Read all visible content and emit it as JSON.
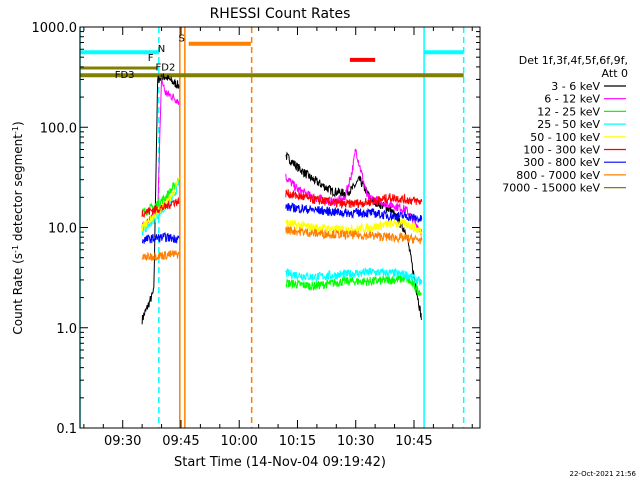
{
  "chart_data": {
    "type": "line",
    "title": "RHESSI Count Rates",
    "xlabel": "Start Time (14-Nov-04 09:19:42)",
    "ylabel_main": "Count Rate (s",
    "ylabel_sup1": "-1",
    "ylabel_mid": " detector segment",
    "ylabel_sup2": "-1",
    "ylabel_end": ")",
    "yscale": "log",
    "ylim": [
      0.1,
      1000
    ],
    "xlim_min": [
      20,
      123
    ],
    "x_tick_minutes": [
      31,
      46,
      61,
      76,
      91,
      106
    ],
    "x_tick_labels": [
      "09:30",
      "09:45",
      "10:00",
      "10:15",
      "10:30",
      "10:45"
    ],
    "y_tick_values": [
      0.1,
      1,
      10,
      100,
      1000
    ],
    "y_tick_labels": [
      "0.1",
      "1.0",
      "10.0",
      "100.0",
      "1000.0"
    ],
    "legend": {
      "placement": "right",
      "header1": "Det 1f,3f,4f,5f,6f,9f,",
      "header2": "Att 0"
    },
    "series": [
      {
        "name": "3 - 6 keV",
        "color": "#000000",
        "segments": [
          {
            "t": [
              36,
              39,
              40,
              42,
              44,
              45.5
            ],
            "y": [
              1.2,
              2.3,
              300,
              320,
              280,
              260
            ]
          },
          {
            "t": [
              73,
              76,
              80,
              85,
              88,
              90,
              92,
              95,
              100,
              104,
              108
            ],
            "y": [
              52,
              40,
              30,
              23,
              22,
              24,
              30,
              19,
              15,
              9,
              1.2
            ]
          }
        ]
      },
      {
        "name": "6 - 12 keV",
        "color": "#ff00ff",
        "segments": [
          {
            "t": [
              36,
              39,
              40,
              41,
              42,
              44,
              45.5
            ],
            "y": [
              10,
              13,
              15,
              300,
              220,
              200,
              180
            ]
          },
          {
            "t": [
              73,
              76,
              80,
              85,
              88,
              90,
              91,
              92,
              94,
              100,
              104,
              108
            ],
            "y": [
              32,
              24,
              20,
              18,
              19,
              35,
              60,
              42,
              20,
              17,
              15,
              9
            ]
          }
        ]
      },
      {
        "name": "12 - 25 keV",
        "color": "#00ff00",
        "segments": [
          {
            "t": [
              36,
              39,
              42,
              44,
              45.5
            ],
            "y": [
              14,
              16,
              20,
              25,
              30
            ]
          },
          {
            "t": [
              73,
              80,
              88,
              95,
              100,
              104,
              108
            ],
            "y": [
              2.8,
              2.6,
              2.9,
              2.9,
              3.0,
              3.1,
              2.2
            ]
          }
        ]
      },
      {
        "name": "25 - 50 keV",
        "color": "#00ffff",
        "segments": [
          {
            "t": [
              36,
              39,
              42,
              44,
              45.5
            ],
            "y": [
              9,
              12,
              16,
              20,
              28
            ]
          },
          {
            "t": [
              73,
              80,
              88,
              95,
              100,
              104,
              108
            ],
            "y": [
              3.5,
              3.2,
              3.4,
              3.6,
              3.5,
              3.4,
              2.8
            ]
          }
        ]
      },
      {
        "name": "50 - 100 keV",
        "color": "#ffff00",
        "segments": [
          {
            "t": [
              36,
              39,
              42,
              44,
              45.5
            ],
            "y": [
              10,
              13,
              17,
              22,
              32
            ]
          },
          {
            "t": [
              73,
              80,
              88,
              95,
              100,
              104,
              108
            ],
            "y": [
              11,
              10,
              9.5,
              10,
              11,
              11,
              9
            ]
          }
        ]
      },
      {
        "name": "100 - 300 keV",
        "color": "#ff0000",
        "segments": [
          {
            "t": [
              36,
              39,
              42,
              44,
              45.5
            ],
            "y": [
              14,
              15,
              16,
              18,
              18
            ]
          },
          {
            "t": [
              73,
              80,
              88,
              95,
              100,
              104,
              108
            ],
            "y": [
              22,
              19,
              17,
              18,
              20,
              19,
              18
            ]
          }
        ]
      },
      {
        "name": "300 - 800 keV",
        "color": "#0000ff",
        "segments": [
          {
            "t": [
              36,
              39,
              42,
              44,
              45.5
            ],
            "y": [
              7.5,
              7.8,
              8.0,
              7.8,
              7.8
            ]
          },
          {
            "t": [
              73,
              80,
              88,
              95,
              100,
              104,
              108
            ],
            "y": [
              16,
              15,
              14,
              14,
              13,
              13,
              12
            ]
          }
        ]
      },
      {
        "name": "800 - 7000 keV",
        "color": "#ff8000",
        "segments": [
          {
            "t": [
              36,
              39,
              42,
              44,
              45.5
            ],
            "y": [
              5,
              5.2,
              5.3,
              5.4,
              5.4
            ]
          },
          {
            "t": [
              73,
              80,
              88,
              95,
              100,
              104,
              108
            ],
            "y": [
              9.5,
              8.8,
              8.5,
              8.3,
              8.0,
              7.8,
              7.5
            ]
          }
        ]
      },
      {
        "name": "7000 - 15000 keV",
        "color": "#808000",
        "segments": []
      }
    ],
    "annotations": {
      "vlines": [
        {
          "t": 20,
          "color": "#00ffff",
          "dash": false
        },
        {
          "t": 40.3,
          "color": "#00ffff",
          "dash": true
        },
        {
          "t": 45.7,
          "color": "#ff8000",
          "dash": false
        },
        {
          "t": 47.0,
          "color": "#ff8000",
          "dash": false
        },
        {
          "t": 64.2,
          "color": "#ff8000",
          "dash": true
        },
        {
          "t": 108.6,
          "color": "#00ffff",
          "dash": false
        },
        {
          "t": 118.8,
          "color": "#00ffff",
          "dash": true
        }
      ],
      "hbars": [
        {
          "t0": 20,
          "t1": 40.3,
          "y": 560,
          "color": "#00ffff",
          "width": 4
        },
        {
          "t0": 108.6,
          "t1": 118.8,
          "y": 560,
          "color": "#00ffff",
          "width": 4
        },
        {
          "t0": 48,
          "t1": 64,
          "y": 680,
          "color": "#ff8000",
          "width": 4
        },
        {
          "t0": 20,
          "t1": 118.8,
          "y": 330,
          "color": "#808000",
          "width": 4
        },
        {
          "t0": 20,
          "t1": 40,
          "y": 390,
          "color": "#808000",
          "width": 3
        },
        {
          "t0": 89.5,
          "t1": 96,
          "y": 470,
          "color": "#ff0000",
          "width": 4
        }
      ],
      "labels": [
        {
          "text": "S",
          "t": 46.2,
          "y": 720,
          "color": "#ff8000"
        },
        {
          "text": "N",
          "t": 41.0,
          "y": 560,
          "color": "#00ffff"
        },
        {
          "text": "F",
          "t": 38.2,
          "y": 460,
          "color": "#800000"
        },
        {
          "text": "FD2",
          "t": 42.0,
          "y": 370,
          "color": "#808000"
        },
        {
          "text": "FD3",
          "t": 31.5,
          "y": 310,
          "color": "#808000"
        }
      ]
    }
  },
  "footer": {
    "timestamp": "22-Oct-2021 21:56"
  }
}
